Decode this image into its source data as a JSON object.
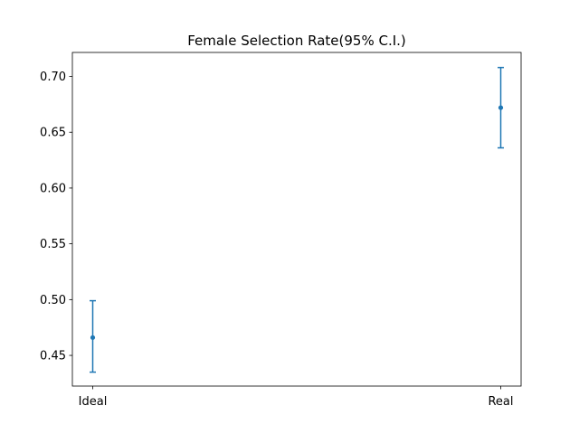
{
  "chart_data": {
    "type": "scatter",
    "title": "Female Selection Rate(95% C.I.)",
    "xlabel": "",
    "ylabel": "",
    "categories": [
      "Ideal",
      "Real"
    ],
    "series": [
      {
        "values": [
          0.466,
          0.672
        ],
        "ci_lower": [
          0.435,
          0.636
        ],
        "ci_upper": [
          0.499,
          0.708
        ]
      }
    ],
    "ylim": [
      0.4225,
      0.7215
    ],
    "yticks": [
      0.45,
      0.5,
      0.55,
      0.6,
      0.65,
      0.7
    ],
    "ytick_labels": [
      "0.45",
      "0.50",
      "0.55",
      "0.60",
      "0.65",
      "0.70"
    ],
    "grid": false,
    "legend": "none",
    "colors": {
      "series": "#1f77b4",
      "axes": "#000000"
    }
  }
}
